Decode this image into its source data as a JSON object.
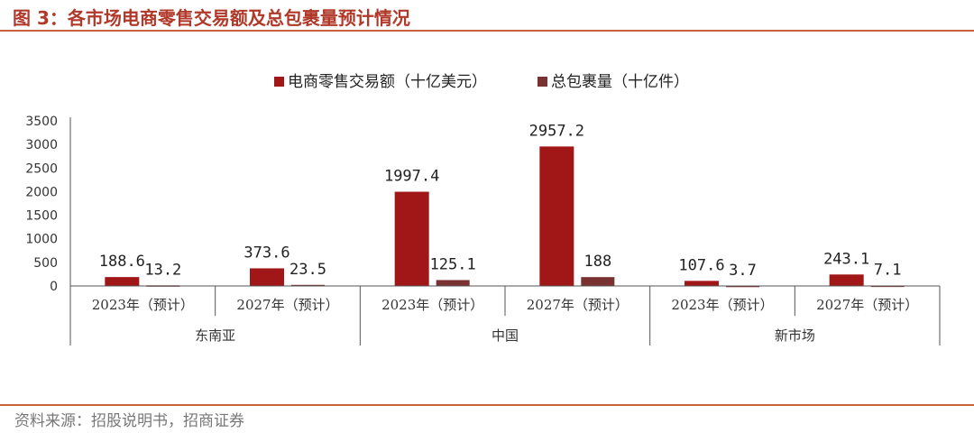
{
  "figure": {
    "title": "图 3：各市场电商零售交易额及总包裹量预计情况",
    "source": "资料来源：招股说明书，招商证券"
  },
  "colors": {
    "series1": "#a11616",
    "series2": "#7a3131",
    "accent": "#c8643c"
  },
  "chart_data": {
    "type": "bar",
    "ylim": [
      0,
      3500
    ],
    "yticks": [
      0,
      500,
      1000,
      1500,
      2000,
      2500,
      3000,
      3500
    ],
    "grid": false,
    "legend_position": "top-center",
    "categories": [
      "2023年（预计）",
      "2027年（预计）",
      "2023年（预计）",
      "2027年（预计）",
      "2023年（预计）",
      "2027年（预计）"
    ],
    "groups": [
      {
        "label": "东南亚",
        "span": 2
      },
      {
        "label": "中国",
        "span": 2
      },
      {
        "label": "新市场",
        "span": 2
      }
    ],
    "series": [
      {
        "name": "电商零售交易额（十亿美元）",
        "color": "#a11616",
        "values": [
          188.6,
          373.6,
          1997.4,
          2957.2,
          107.6,
          243.1
        ],
        "labels": [
          "188.6",
          "373.6",
          "1997.4",
          "2957.2",
          "107.6",
          "243.1"
        ]
      },
      {
        "name": "总包裹量（十亿件）",
        "color": "#7a3131",
        "values": [
          13.2,
          23.5,
          125.1,
          188,
          3.7,
          7.1
        ],
        "labels": [
          "13.2",
          "23.5",
          "125.1",
          "188",
          "3.7",
          "7.1"
        ]
      }
    ]
  }
}
